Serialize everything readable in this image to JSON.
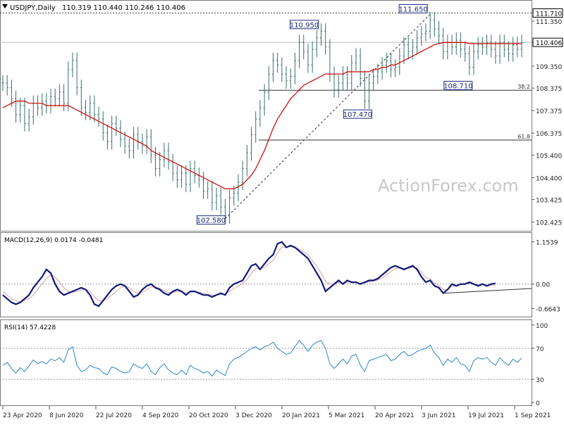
{
  "header": {
    "symbol": "USDJPY,Daily",
    "ohlc": "110.319 110.440 110.246 110.406"
  },
  "watermark": "ActionForex.com",
  "colors": {
    "bar": "#3a6f6a",
    "ma": "#cc0000",
    "macd": "#101a78",
    "signal": "#d8a0a8",
    "rsi": "#2a86c8",
    "grid": "#9a9a9a",
    "label_border": "#1a2a7a",
    "label_text": "#1a2a7a"
  },
  "chart_data": [
    {
      "type": "candlestick",
      "panel": "price",
      "ylim": [
        102.1,
        112.1
      ],
      "y_ticks": [
        "111.350",
        "110.400",
        "109.350",
        "108.375",
        "107.375",
        "106.375",
        "105.400",
        "104.400",
        "103.425",
        "102.425"
      ],
      "current_price_label": "110.406",
      "current_price": 110.406,
      "top_line_label": "111.710",
      "top_line": 111.71,
      "x_ticks": [
        "23 Apr 2020",
        "8 Jun 2020",
        "22 Jul 2020",
        "4 Sep 2020",
        "20 Oct 2020",
        "3 Dec 2020",
        "20 Jan 2021",
        "5 Mar 2021",
        "20 Apr 2021",
        "3 Jun 2021",
        "19 Jul 2021",
        "1 Sep 2021"
      ],
      "annotations": [
        {
          "label": "102.580",
          "date_index": 51,
          "value": 102.58
        },
        {
          "label": "110.950",
          "date_index": 73,
          "value": 110.95
        },
        {
          "label": "107.470",
          "date_index": 83,
          "value": 107.47
        },
        {
          "label": "111.650",
          "date_index": 98,
          "value": 111.65
        },
        {
          "label": "108.710",
          "date_index": 107,
          "value": 108.71
        }
      ],
      "fib_levels": [
        {
          "label": "38.2",
          "value": 108.28
        },
        {
          "label": "61.8",
          "value": 106.07
        }
      ],
      "series": [
        {
          "name": "close",
          "values": [
            108.6,
            108.4,
            107.9,
            107.2,
            107.6,
            106.8,
            107.1,
            107.7,
            107.5,
            107.8,
            107.6,
            108.0,
            107.9,
            108.2,
            107.7,
            109.2,
            109.6,
            108.4,
            107.5,
            107.3,
            107.7,
            107.2,
            107.0,
            106.4,
            106.0,
            106.8,
            106.6,
            106.1,
            105.8,
            105.6,
            106.3,
            106.0,
            105.8,
            106.2,
            105.4,
            104.8,
            105.2,
            105.6,
            105.1,
            104.6,
            104.3,
            104.6,
            104.1,
            104.8,
            104.5,
            104.3,
            103.8,
            103.9,
            103.3,
            103.6,
            103.1,
            102.7,
            103.5,
            103.7,
            104.2,
            104.8,
            105.5,
            106.3,
            107.0,
            107.5,
            108.2,
            109.0,
            109.6,
            109.4,
            109.0,
            108.7,
            108.9,
            109.6,
            110.4,
            110.0,
            109.4,
            110.1,
            110.6,
            110.9,
            110.2,
            109.0,
            108.3,
            108.6,
            109.0,
            108.6,
            109.5,
            109.8,
            108.8,
            107.8,
            108.6,
            108.9,
            109.1,
            109.4,
            109.6,
            109.2,
            109.3,
            109.8,
            110.3,
            110.0,
            110.2,
            110.6,
            110.8,
            110.9,
            111.4,
            111.0,
            110.7,
            110.0,
            110.4,
            110.2,
            110.5,
            110.1,
            109.9,
            109.3,
            110.0,
            110.3,
            110.2,
            110.4,
            110.1,
            109.8,
            110.4,
            110.1,
            109.9,
            110.3,
            110.1,
            110.4
          ]
        },
        {
          "name": "MA",
          "values": [
            107.5,
            107.6,
            107.7,
            107.8,
            107.8,
            107.8,
            107.7,
            107.7,
            107.7,
            107.7,
            107.6,
            107.6,
            107.6,
            107.6,
            107.6,
            107.6,
            107.5,
            107.4,
            107.3,
            107.2,
            107.1,
            107.0,
            106.9,
            106.8,
            106.7,
            106.6,
            106.5,
            106.4,
            106.3,
            106.2,
            106.1,
            106.0,
            105.9,
            105.8,
            105.6,
            105.5,
            105.4,
            105.3,
            105.2,
            105.1,
            105.0,
            104.9,
            104.8,
            104.7,
            104.6,
            104.5,
            104.4,
            104.3,
            104.2,
            104.1,
            104.0,
            103.9,
            103.9,
            103.9,
            104.0,
            104.1,
            104.3,
            104.5,
            104.8,
            105.2,
            105.6,
            106.1,
            106.6,
            107.0,
            107.3,
            107.6,
            107.9,
            108.1,
            108.3,
            108.5,
            108.6,
            108.7,
            108.8,
            108.9,
            109.0,
            109.0,
            109.0,
            109.0,
            109.0,
            109.1,
            109.1,
            109.1,
            109.1,
            109.1,
            109.1,
            109.2,
            109.2,
            109.3,
            109.3,
            109.4,
            109.4,
            109.5,
            109.6,
            109.7,
            109.8,
            109.9,
            110.0,
            110.1,
            110.2,
            110.3,
            110.35,
            110.4,
            110.4,
            110.4,
            110.4,
            110.4,
            110.4,
            110.35,
            110.35,
            110.35,
            110.35,
            110.35,
            110.35,
            110.35,
            110.35,
            110.35,
            110.35,
            110.35,
            110.35,
            110.35
          ]
        }
      ]
    },
    {
      "type": "line",
      "panel": "macd",
      "title": "MACD(12,26,9) 0.0174 -0.0481",
      "ylim": [
        -0.85,
        1.3
      ],
      "y_ticks": [
        "1.1539",
        "0.00",
        "-0.6643"
      ],
      "series": [
        {
          "name": "MACD",
          "values": [
            -0.3,
            -0.4,
            -0.5,
            -0.55,
            -0.5,
            -0.4,
            -0.3,
            -0.1,
            0.05,
            0.2,
            0.4,
            0.3,
            0.0,
            -0.2,
            -0.3,
            -0.25,
            -0.2,
            -0.15,
            -0.1,
            -0.15,
            -0.3,
            -0.55,
            -0.6,
            -0.45,
            -0.3,
            -0.15,
            -0.05,
            0.0,
            -0.05,
            -0.2,
            -0.35,
            -0.3,
            -0.15,
            -0.05,
            0.0,
            -0.1,
            -0.15,
            -0.25,
            -0.3,
            -0.2,
            -0.15,
            -0.2,
            -0.3,
            -0.2,
            -0.2,
            -0.25,
            -0.3,
            -0.3,
            -0.35,
            -0.3,
            -0.25,
            -0.3,
            -0.1,
            0.0,
            0.05,
            0.1,
            0.3,
            0.5,
            0.55,
            0.4,
            0.55,
            0.7,
            0.8,
            1.1,
            1.15,
            1.0,
            1.05,
            1.0,
            0.9,
            0.8,
            0.7,
            0.5,
            0.3,
            0.1,
            -0.2,
            -0.1,
            0.0,
            0.1,
            0.0,
            0.1,
            0.05,
            0.05,
            0.0,
            0.05,
            0.1,
            0.1,
            0.15,
            0.25,
            0.35,
            0.45,
            0.5,
            0.45,
            0.4,
            0.45,
            0.5,
            0.4,
            0.2,
            0.05,
            0.1,
            -0.05,
            -0.1,
            -0.25,
            -0.15,
            0.0,
            -0.05,
            0.0,
            0.0,
            0.05,
            0.0,
            -0.05,
            0.0,
            -0.05,
            0.0,
            0.02
          ]
        },
        {
          "name": "Signal",
          "values": [
            -0.2,
            -0.3,
            -0.4,
            -0.45,
            -0.48,
            -0.45,
            -0.4,
            -0.3,
            -0.15,
            0.0,
            0.15,
            0.25,
            0.2,
            0.05,
            -0.1,
            -0.2,
            -0.22,
            -0.2,
            -0.16,
            -0.14,
            -0.2,
            -0.35,
            -0.45,
            -0.45,
            -0.4,
            -0.3,
            -0.2,
            -0.1,
            -0.05,
            -0.1,
            -0.2,
            -0.25,
            -0.22,
            -0.15,
            -0.08,
            -0.08,
            -0.12,
            -0.18,
            -0.24,
            -0.22,
            -0.2,
            -0.2,
            -0.24,
            -0.22,
            -0.2,
            -0.22,
            -0.25,
            -0.28,
            -0.3,
            -0.3,
            -0.28,
            -0.28,
            -0.2,
            -0.12,
            -0.05,
            0.02,
            0.12,
            0.3,
            0.42,
            0.42,
            0.46,
            0.55,
            0.65,
            0.85,
            1.0,
            1.02,
            1.02,
            1.0,
            0.95,
            0.88,
            0.8,
            0.65,
            0.48,
            0.3,
            0.08,
            0.0,
            0.0,
            0.05,
            0.02,
            0.05,
            0.05,
            0.05,
            0.02,
            0.03,
            0.06,
            0.08,
            0.11,
            0.17,
            0.25,
            0.34,
            0.42,
            0.44,
            0.42,
            0.43,
            0.46,
            0.43,
            0.32,
            0.18,
            0.14,
            0.04,
            -0.04,
            -0.15,
            -0.15,
            -0.06,
            -0.05,
            -0.02,
            -0.01,
            0.02,
            0.01,
            -0.02,
            -0.01,
            -0.03,
            -0.02,
            -0.0481
          ]
        }
      ]
    },
    {
      "type": "line",
      "panel": "rsi",
      "title": "RSI(14) 57.4228",
      "ylim": [
        0,
        100
      ],
      "y_ticks": [
        "100",
        "70",
        "30",
        "0"
      ],
      "levels": [
        70,
        30
      ],
      "series": [
        {
          "name": "RSI",
          "values": [
            48,
            52,
            44,
            38,
            45,
            40,
            47,
            55,
            50,
            53,
            50,
            56,
            54,
            58,
            52,
            68,
            72,
            48,
            40,
            42,
            48,
            45,
            44,
            38,
            36,
            46,
            44,
            40,
            38,
            40,
            50,
            46,
            44,
            50,
            40,
            36,
            45,
            50,
            42,
            38,
            36,
            42,
            36,
            48,
            44,
            42,
            38,
            40,
            34,
            42,
            38,
            35,
            50,
            56,
            58,
            62,
            66,
            70,
            72,
            68,
            72,
            74,
            78,
            70,
            66,
            62,
            64,
            72,
            80,
            74,
            66,
            74,
            78,
            80,
            70,
            50,
            44,
            50,
            56,
            50,
            60,
            62,
            48,
            40,
            54,
            56,
            58,
            60,
            62,
            54,
            56,
            62,
            66,
            60,
            62,
            66,
            68,
            70,
            74,
            64,
            58,
            48,
            56,
            52,
            58,
            50,
            48,
            40,
            54,
            58,
            56,
            58,
            52,
            48,
            58,
            52,
            48,
            56,
            52,
            57.4
          ]
        }
      ]
    }
  ]
}
